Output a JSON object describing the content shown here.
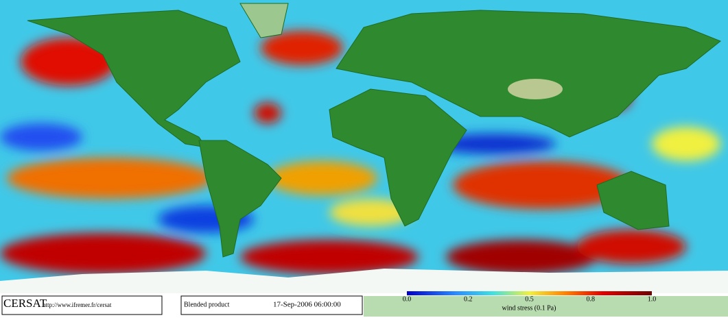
{
  "header": {
    "logo": "CERSAT",
    "url": "http://www.ifremer.fr/cersat"
  },
  "product": {
    "name": "Blended product",
    "date": "17-Sep-2006 06:00:00"
  },
  "colorbar": {
    "title": "wind stress (0.1 Pa)",
    "tick_labels": [
      "0.0",
      "0.2",
      "0.5",
      "0.8",
      "1.0"
    ]
  }
}
